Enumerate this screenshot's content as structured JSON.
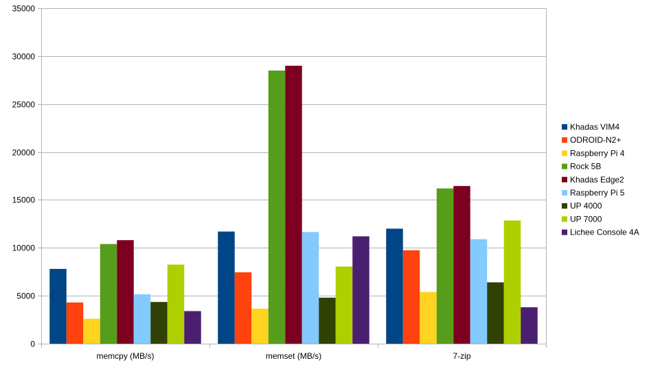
{
  "chart_data": {
    "type": "bar",
    "title": "",
    "xlabel": "",
    "ylabel": "",
    "ylim": [
      0,
      35000
    ],
    "yticks": [
      0,
      5000,
      10000,
      15000,
      20000,
      25000,
      30000,
      35000
    ],
    "grid": true,
    "legend_position": "right",
    "categories": [
      "memcpy (MB/s)",
      "memset (MB/s)",
      "7-zip"
    ],
    "series": [
      {
        "name": "Khadas VIM4",
        "color": "#004586",
        "values": [
          7800,
          11700,
          12000
        ]
      },
      {
        "name": "ODROID-N2+",
        "color": "#ff420e",
        "values": [
          4300,
          7450,
          9750
        ]
      },
      {
        "name": "Raspberry Pi 4",
        "color": "#ffd320",
        "values": [
          2600,
          3650,
          5400
        ]
      },
      {
        "name": "Rock 5B",
        "color": "#579d1c",
        "values": [
          10400,
          28500,
          16200
        ]
      },
      {
        "name": "Khadas Edge2",
        "color": "#7e0021",
        "values": [
          10800,
          29000,
          16450
        ]
      },
      {
        "name": "Raspberry Pi 5",
        "color": "#83caff",
        "values": [
          5150,
          11650,
          10900
        ]
      },
      {
        "name": "UP 4000",
        "color": "#314004",
        "values": [
          4350,
          4800,
          6400
        ]
      },
      {
        "name": "UP 7000",
        "color": "#aecf00",
        "values": [
          8250,
          8050,
          12850
        ]
      },
      {
        "name": "Lichee Console 4A",
        "color": "#4b1f6f",
        "values": [
          3400,
          11200,
          3800
        ]
      }
    ]
  }
}
